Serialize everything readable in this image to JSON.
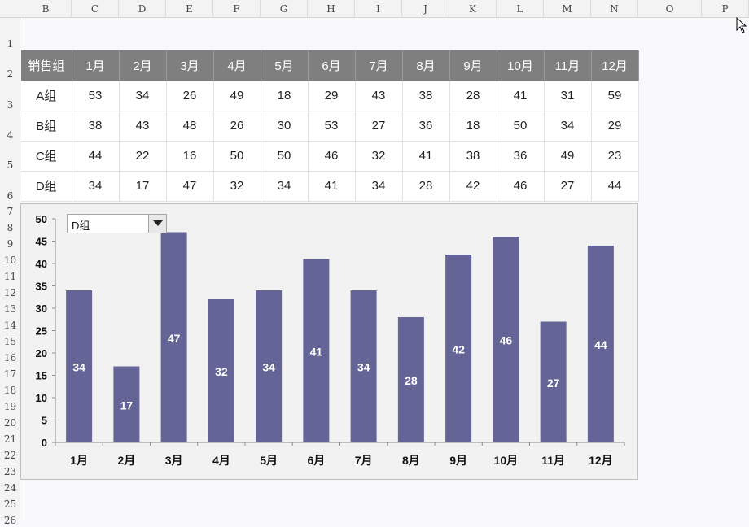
{
  "sheet": {
    "column_letters": [
      "B",
      "C",
      "D",
      "E",
      "F",
      "G",
      "H",
      "I",
      "J",
      "K",
      "L",
      "M",
      "N",
      "O",
      "P"
    ],
    "row_numbers": [
      "1",
      "2",
      "3",
      "4",
      "5",
      "6",
      "7",
      "8",
      "9",
      "10",
      "11",
      "12",
      "13",
      "14",
      "15",
      "16",
      "17",
      "18",
      "19",
      "20",
      "21",
      "22",
      "23",
      "24",
      "25",
      "26"
    ]
  },
  "table": {
    "header": [
      "销售组",
      "1月",
      "2月",
      "3月",
      "4月",
      "5月",
      "6月",
      "7月",
      "8月",
      "9月",
      "10月",
      "11月",
      "12月"
    ],
    "rows": [
      {
        "group": "A组",
        "values": [
          53,
          34,
          26,
          49,
          18,
          29,
          43,
          38,
          28,
          41,
          31,
          59
        ]
      },
      {
        "group": "B组",
        "values": [
          38,
          43,
          48,
          26,
          30,
          53,
          27,
          36,
          18,
          50,
          34,
          29
        ]
      },
      {
        "group": "C组",
        "values": [
          44,
          22,
          16,
          50,
          50,
          46,
          32,
          41,
          38,
          36,
          49,
          23
        ]
      },
      {
        "group": "D组",
        "values": [
          34,
          17,
          47,
          32,
          34,
          41,
          34,
          28,
          42,
          46,
          27,
          44
        ]
      }
    ]
  },
  "dropdown": {
    "selected": "D组"
  },
  "colors": {
    "bar": "#646496",
    "header_bg": "#7f7f7f"
  },
  "chart_data": {
    "type": "bar",
    "categories": [
      "1月",
      "2月",
      "3月",
      "4月",
      "5月",
      "6月",
      "7月",
      "8月",
      "9月",
      "10月",
      "11月",
      "12月"
    ],
    "values": [
      34,
      17,
      47,
      32,
      34,
      41,
      34,
      28,
      42,
      46,
      27,
      44
    ],
    "ylim": [
      0,
      50
    ],
    "yticks": [
      "0",
      "5",
      "10",
      "15",
      "20",
      "25",
      "30",
      "35",
      "40",
      "45",
      "50"
    ],
    "grid": false,
    "data_labels": true
  }
}
